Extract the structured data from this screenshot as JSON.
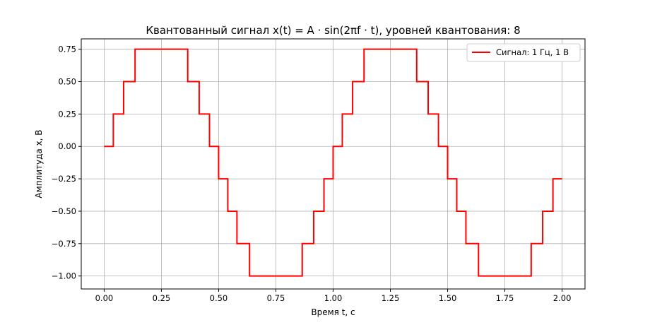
{
  "chart_data": {
    "type": "line",
    "title": "Квантованный сигнал x(t) = A · sin(2πf · t), уровней квантования: 8",
    "xlabel": "Время t, с",
    "ylabel": "Амплитуда x, В",
    "xlim": [
      -0.1,
      2.1
    ],
    "ylim": [
      -1.1,
      0.83
    ],
    "xticks": [
      0.0,
      0.25,
      0.5,
      0.75,
      1.0,
      1.25,
      1.5,
      1.75,
      2.0
    ],
    "xtick_labels": [
      "0.00",
      "0.25",
      "0.50",
      "0.75",
      "1.00",
      "1.25",
      "1.50",
      "1.75",
      "2.00"
    ],
    "yticks": [
      0.75,
      0.5,
      0.25,
      0.0,
      -0.25,
      -0.5,
      -0.75,
      -1.0
    ],
    "ytick_labels": [
      "0.75",
      "0.50",
      "0.25",
      "0.00",
      "−0.25",
      "−0.50",
      "−0.75",
      "−1.00"
    ],
    "grid": true,
    "legend_position": "top-right",
    "series": [
      {
        "name": "Сигнал: 1 Гц, 1 В",
        "color": "#ff0000",
        "step": true,
        "points": [
          [
            0.0,
            0.0
          ],
          [
            0.04,
            0.0
          ],
          [
            0.04,
            0.25
          ],
          [
            0.085,
            0.25
          ],
          [
            0.085,
            0.5
          ],
          [
            0.135,
            0.5
          ],
          [
            0.135,
            0.75
          ],
          [
            0.365,
            0.75
          ],
          [
            0.365,
            0.5
          ],
          [
            0.415,
            0.5
          ],
          [
            0.415,
            0.25
          ],
          [
            0.46,
            0.25
          ],
          [
            0.46,
            0.0
          ],
          [
            0.5,
            0.0
          ],
          [
            0.5,
            -0.25
          ],
          [
            0.54,
            -0.25
          ],
          [
            0.54,
            -0.5
          ],
          [
            0.58,
            -0.5
          ],
          [
            0.58,
            -0.75
          ],
          [
            0.635,
            -0.75
          ],
          [
            0.635,
            -1.0
          ],
          [
            0.865,
            -1.0
          ],
          [
            0.865,
            -0.75
          ],
          [
            0.915,
            -0.75
          ],
          [
            0.915,
            -0.5
          ],
          [
            0.96,
            -0.5
          ],
          [
            0.96,
            -0.25
          ],
          [
            1.0,
            -0.25
          ],
          [
            1.0,
            0.0
          ],
          [
            1.04,
            0.0
          ],
          [
            1.04,
            0.25
          ],
          [
            1.085,
            0.25
          ],
          [
            1.085,
            0.5
          ],
          [
            1.135,
            0.5
          ],
          [
            1.135,
            0.75
          ],
          [
            1.365,
            0.75
          ],
          [
            1.365,
            0.5
          ],
          [
            1.415,
            0.5
          ],
          [
            1.415,
            0.25
          ],
          [
            1.46,
            0.25
          ],
          [
            1.46,
            0.0
          ],
          [
            1.5,
            0.0
          ],
          [
            1.5,
            -0.25
          ],
          [
            1.54,
            -0.25
          ],
          [
            1.54,
            -0.5
          ],
          [
            1.58,
            -0.5
          ],
          [
            1.58,
            -0.75
          ],
          [
            1.635,
            -0.75
          ],
          [
            1.635,
            -1.0
          ],
          [
            1.865,
            -1.0
          ],
          [
            1.865,
            -0.75
          ],
          [
            1.915,
            -0.75
          ],
          [
            1.915,
            -0.5
          ],
          [
            1.96,
            -0.5
          ],
          [
            1.96,
            -0.25
          ],
          [
            2.0,
            -0.25
          ]
        ]
      }
    ]
  }
}
